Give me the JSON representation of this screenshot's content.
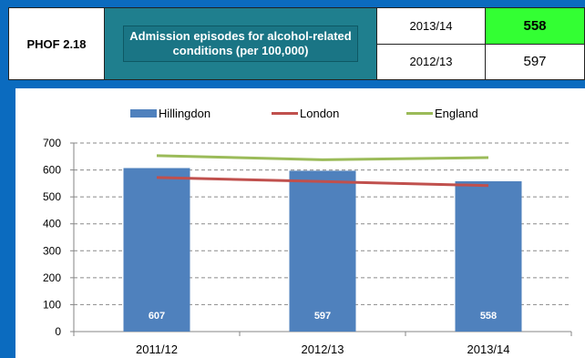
{
  "header": {
    "code": "PHOF 2.18",
    "title": "Admission episodes for alcohol-related conditions (per 100,000)",
    "current_year": "2013/14",
    "current_value": "558",
    "previous_year": "2012/13",
    "previous_value": "597"
  },
  "colors": {
    "background": "#0b6bbf",
    "title_bg": "#1a7585",
    "highlight": "#33ff33",
    "hillingdon": "#4f81bd",
    "london": "#c0504d",
    "england": "#9bbb59"
  },
  "chart_data": {
    "type": "bar",
    "categories": [
      "2011/12",
      "2012/13",
      "2013/14"
    ],
    "series": [
      {
        "name": "Hillingdon",
        "kind": "bar",
        "values": [
          607,
          597,
          558
        ],
        "labels": [
          "607",
          "597",
          "558"
        ]
      },
      {
        "name": "London",
        "kind": "line",
        "values": [
          572,
          557,
          542
        ]
      },
      {
        "name": "England",
        "kind": "line",
        "values": [
          653,
          638,
          646
        ]
      }
    ],
    "yticks": [
      "0",
      "100",
      "200",
      "300",
      "400",
      "500",
      "600",
      "700"
    ],
    "ylim": [
      0,
      700
    ],
    "grid": "dashed horizontal",
    "legend_position": "top"
  }
}
